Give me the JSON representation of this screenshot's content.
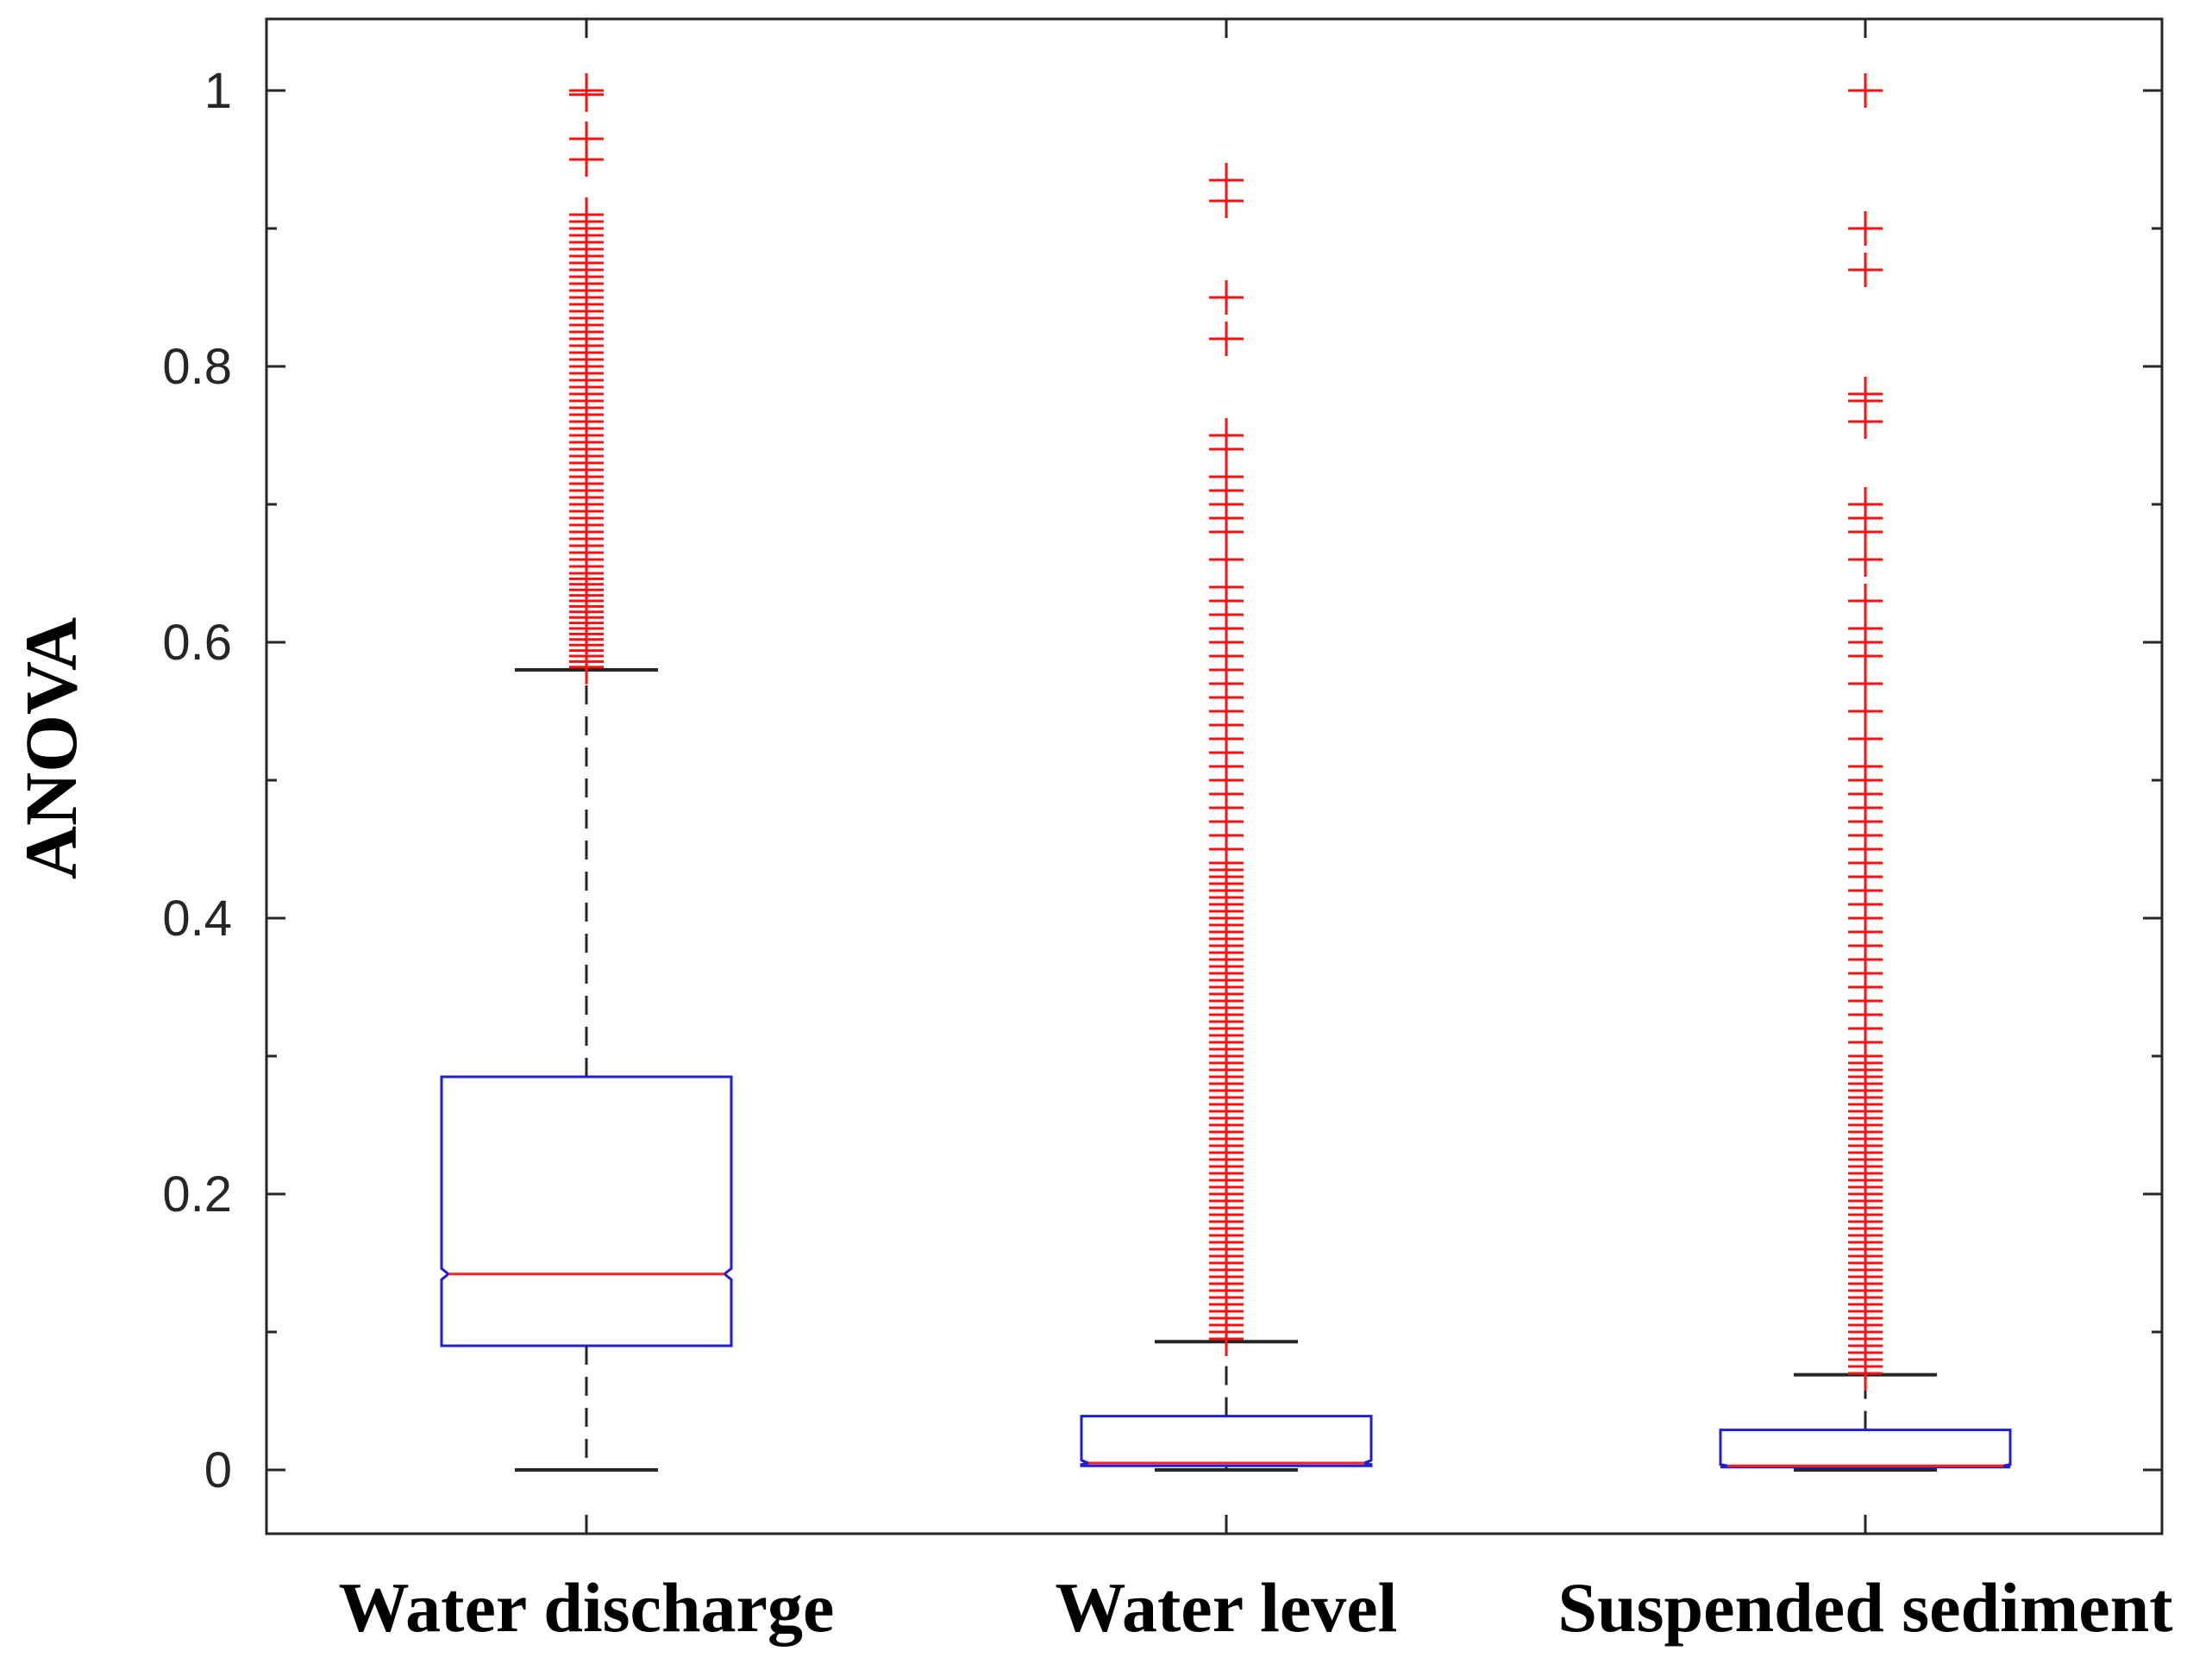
{
  "chart_data": {
    "type": "box",
    "title": "",
    "xlabel": "",
    "ylabel": "ANOVA",
    "ylim": [
      -0.075,
      1.03
    ],
    "yticks": [
      0,
      0.2,
      0.4,
      0.6,
      0.8,
      1
    ],
    "ytick_labels": [
      "0",
      "0.2",
      "0.4",
      "0.6",
      "0.8",
      "1"
    ],
    "notched": true,
    "categories": [
      "Water discharge",
      "Water level",
      "Suspended sediment"
    ],
    "boxes": [
      {
        "name": "Water discharge",
        "whisker_low": 0.0,
        "q1": 0.09,
        "median": 0.142,
        "notch_low": 0.138,
        "notch_high": 0.146,
        "q3": 0.285,
        "whisker_high": 0.58,
        "outliers": [
          0.582,
          0.586,
          0.59,
          0.594,
          0.598,
          0.602,
          0.606,
          0.61,
          0.614,
          0.618,
          0.622,
          0.626,
          0.63,
          0.634,
          0.638,
          0.642,
          0.646,
          0.65,
          0.655,
          0.66,
          0.665,
          0.67,
          0.675,
          0.68,
          0.685,
          0.69,
          0.695,
          0.7,
          0.705,
          0.71,
          0.715,
          0.72,
          0.725,
          0.73,
          0.735,
          0.74,
          0.745,
          0.75,
          0.755,
          0.76,
          0.765,
          0.77,
          0.775,
          0.78,
          0.785,
          0.79,
          0.795,
          0.8,
          0.805,
          0.81,
          0.815,
          0.82,
          0.825,
          0.83,
          0.835,
          0.84,
          0.845,
          0.85,
          0.855,
          0.86,
          0.865,
          0.87,
          0.875,
          0.88,
          0.885,
          0.89,
          0.895,
          0.9,
          0.905,
          0.91,
          0.95,
          0.965,
          0.997,
          1.0
        ]
      },
      {
        "name": "Water level",
        "whisker_low": 0.0,
        "q1": 0.003,
        "median": 0.005,
        "notch_low": 0.004,
        "notch_high": 0.007,
        "q3": 0.039,
        "whisker_high": 0.093,
        "outliers": [
          0.095,
          0.1,
          0.105,
          0.11,
          0.115,
          0.12,
          0.125,
          0.13,
          0.135,
          0.14,
          0.145,
          0.15,
          0.155,
          0.16,
          0.165,
          0.17,
          0.175,
          0.18,
          0.185,
          0.19,
          0.195,
          0.2,
          0.205,
          0.21,
          0.215,
          0.22,
          0.225,
          0.23,
          0.235,
          0.24,
          0.245,
          0.25,
          0.255,
          0.26,
          0.265,
          0.27,
          0.275,
          0.28,
          0.285,
          0.29,
          0.295,
          0.3,
          0.305,
          0.31,
          0.315,
          0.32,
          0.325,
          0.33,
          0.335,
          0.34,
          0.345,
          0.35,
          0.355,
          0.36,
          0.365,
          0.37,
          0.375,
          0.38,
          0.385,
          0.39,
          0.395,
          0.4,
          0.405,
          0.41,
          0.415,
          0.42,
          0.425,
          0.43,
          0.435,
          0.44,
          0.45,
          0.46,
          0.47,
          0.48,
          0.49,
          0.5,
          0.51,
          0.52,
          0.53,
          0.54,
          0.55,
          0.56,
          0.57,
          0.58,
          0.59,
          0.6,
          0.61,
          0.62,
          0.63,
          0.64,
          0.66,
          0.68,
          0.69,
          0.7,
          0.71,
          0.72,
          0.74,
          0.75,
          0.82,
          0.85,
          0.92,
          0.935
        ]
      },
      {
        "name": "Suspended sediment",
        "whisker_low": 0.0,
        "q1": 0.002,
        "median": 0.003,
        "notch_low": 0.002,
        "notch_high": 0.004,
        "q3": 0.029,
        "whisker_high": 0.069,
        "outliers": [
          0.07,
          0.075,
          0.08,
          0.085,
          0.09,
          0.095,
          0.1,
          0.105,
          0.11,
          0.115,
          0.12,
          0.125,
          0.13,
          0.135,
          0.14,
          0.145,
          0.15,
          0.155,
          0.16,
          0.165,
          0.17,
          0.175,
          0.18,
          0.185,
          0.19,
          0.195,
          0.2,
          0.205,
          0.21,
          0.215,
          0.22,
          0.225,
          0.23,
          0.235,
          0.24,
          0.245,
          0.25,
          0.255,
          0.26,
          0.265,
          0.27,
          0.275,
          0.28,
          0.285,
          0.29,
          0.295,
          0.3,
          0.31,
          0.32,
          0.33,
          0.34,
          0.35,
          0.36,
          0.37,
          0.38,
          0.39,
          0.4,
          0.41,
          0.42,
          0.43,
          0.44,
          0.45,
          0.46,
          0.47,
          0.48,
          0.49,
          0.5,
          0.51,
          0.53,
          0.55,
          0.57,
          0.59,
          0.6,
          0.61,
          0.63,
          0.66,
          0.68,
          0.69,
          0.7,
          0.76,
          0.775,
          0.78,
          0.87,
          0.9,
          1.0
        ]
      }
    ],
    "colors": {
      "box": "#1f1fd6",
      "median": "#ff2020",
      "whisker": "#262626",
      "outlier": "#ff1010",
      "axis": "#262626"
    }
  }
}
